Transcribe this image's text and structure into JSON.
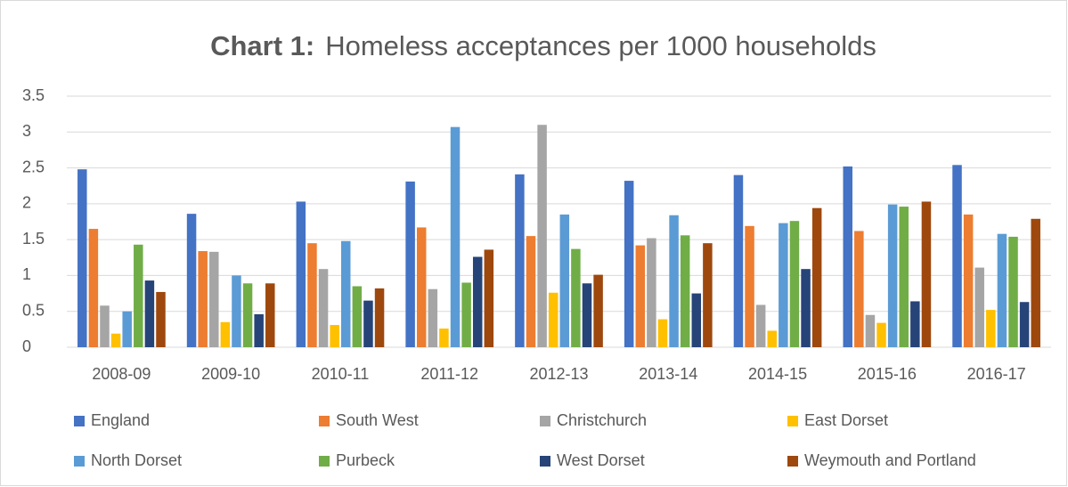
{
  "chart_data": {
    "type": "bar",
    "title": [
      "Chart 1:",
      "Homeless acceptances per 1000 households"
    ],
    "categories": [
      "2008-09",
      "2009-10",
      "2010-11",
      "2011-12",
      "2012-13",
      "2013-14",
      "2014-15",
      "2015-16",
      "2016-17"
    ],
    "series": [
      {
        "name": "England",
        "color": "#4472c4",
        "values": [
          2.48,
          1.86,
          2.03,
          2.31,
          2.41,
          2.32,
          2.4,
          2.52,
          2.54
        ]
      },
      {
        "name": "South West",
        "color": "#ed7d31",
        "values": [
          1.65,
          1.34,
          1.45,
          1.67,
          1.55,
          1.42,
          1.69,
          1.62,
          1.85
        ]
      },
      {
        "name": "Christchurch",
        "color": "#a5a5a5",
        "values": [
          0.58,
          1.33,
          1.09,
          0.81,
          3.1,
          1.52,
          0.59,
          0.45,
          1.11
        ]
      },
      {
        "name": "East Dorset",
        "color": "#ffc000",
        "values": [
          0.19,
          0.35,
          0.31,
          0.26,
          0.76,
          0.39,
          0.23,
          0.34,
          0.52
        ]
      },
      {
        "name": "North Dorset",
        "color": "#5b9bd5",
        "values": [
          0.5,
          1.0,
          1.48,
          3.07,
          1.85,
          1.84,
          1.73,
          1.99,
          1.58
        ]
      },
      {
        "name": "Purbeck",
        "color": "#70ad47",
        "values": [
          1.43,
          0.89,
          0.85,
          0.9,
          1.37,
          1.56,
          1.76,
          1.96,
          1.54
        ]
      },
      {
        "name": "West Dorset",
        "color": "#264478",
        "values": [
          0.93,
          0.46,
          0.65,
          1.26,
          0.89,
          0.75,
          1.09,
          0.64,
          0.63
        ]
      },
      {
        "name": "Weymouth and Portland",
        "color": "#9e480e",
        "values": [
          0.77,
          0.89,
          0.82,
          1.36,
          1.01,
          1.45,
          1.94,
          2.03,
          1.79
        ]
      }
    ],
    "ylim": [
      0,
      3.5
    ],
    "yticks": [
      0,
      0.5,
      1,
      1.5,
      2,
      2.5,
      3,
      3.5
    ],
    "grid": true,
    "legend": "bottom"
  }
}
